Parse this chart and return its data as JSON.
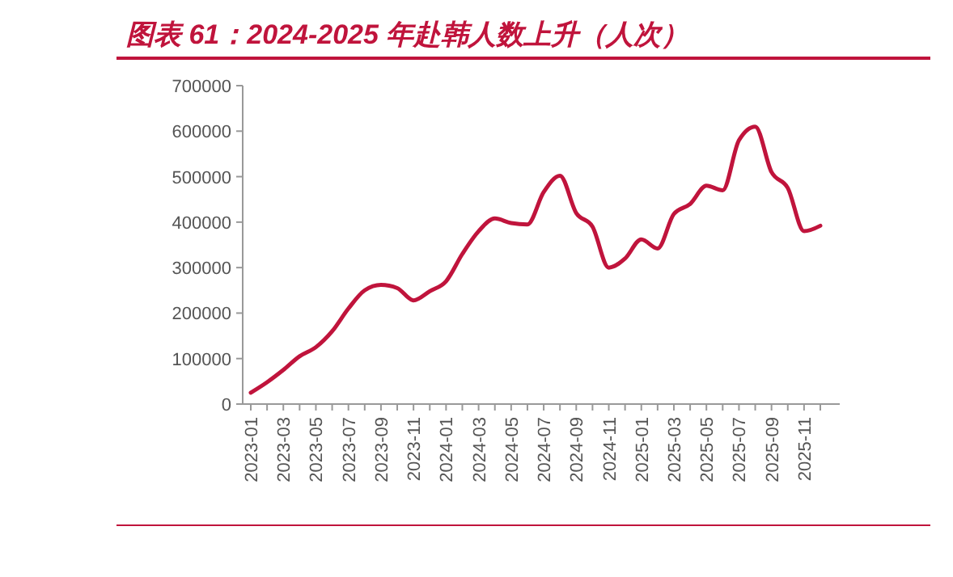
{
  "chart_data": {
    "type": "line",
    "title": "图表 61：2024-2025 年赴韩人数上升（人次）",
    "categories": [
      "2023-01",
      null,
      "2023-03",
      null,
      "2023-05",
      null,
      "2023-07",
      null,
      "2023-09",
      null,
      "2023-11",
      null,
      "2024-01",
      null,
      "2024-03",
      null,
      "2024-05",
      null,
      "2024-07",
      null,
      "2024-09",
      null,
      "2024-11",
      null,
      "2025-01",
      null,
      "2025-03",
      null,
      "2025-05",
      null,
      "2025-07",
      null,
      "2025-09",
      null,
      "2025-11",
      null
    ],
    "series": [
      {
        "color": "#c0143c",
        "values": [
          25000,
          48000,
          75000,
          105000,
          125000,
          160000,
          210000,
          250000,
          262000,
          255000,
          228000,
          248000,
          270000,
          330000,
          380000,
          408000,
          398000,
          395000,
          466000,
          502000,
          420000,
          390000,
          300000,
          320000,
          362000,
          342000,
          418000,
          440000,
          480000,
          470000,
          580000,
          610000,
          510000,
          475000,
          380000,
          392000
        ]
      }
    ],
    "ylim": [
      0,
      700000
    ],
    "yticks": [
      0,
      100000,
      200000,
      300000,
      400000,
      500000,
      600000,
      700000
    ],
    "marker": "none",
    "line_style": "solid"
  }
}
